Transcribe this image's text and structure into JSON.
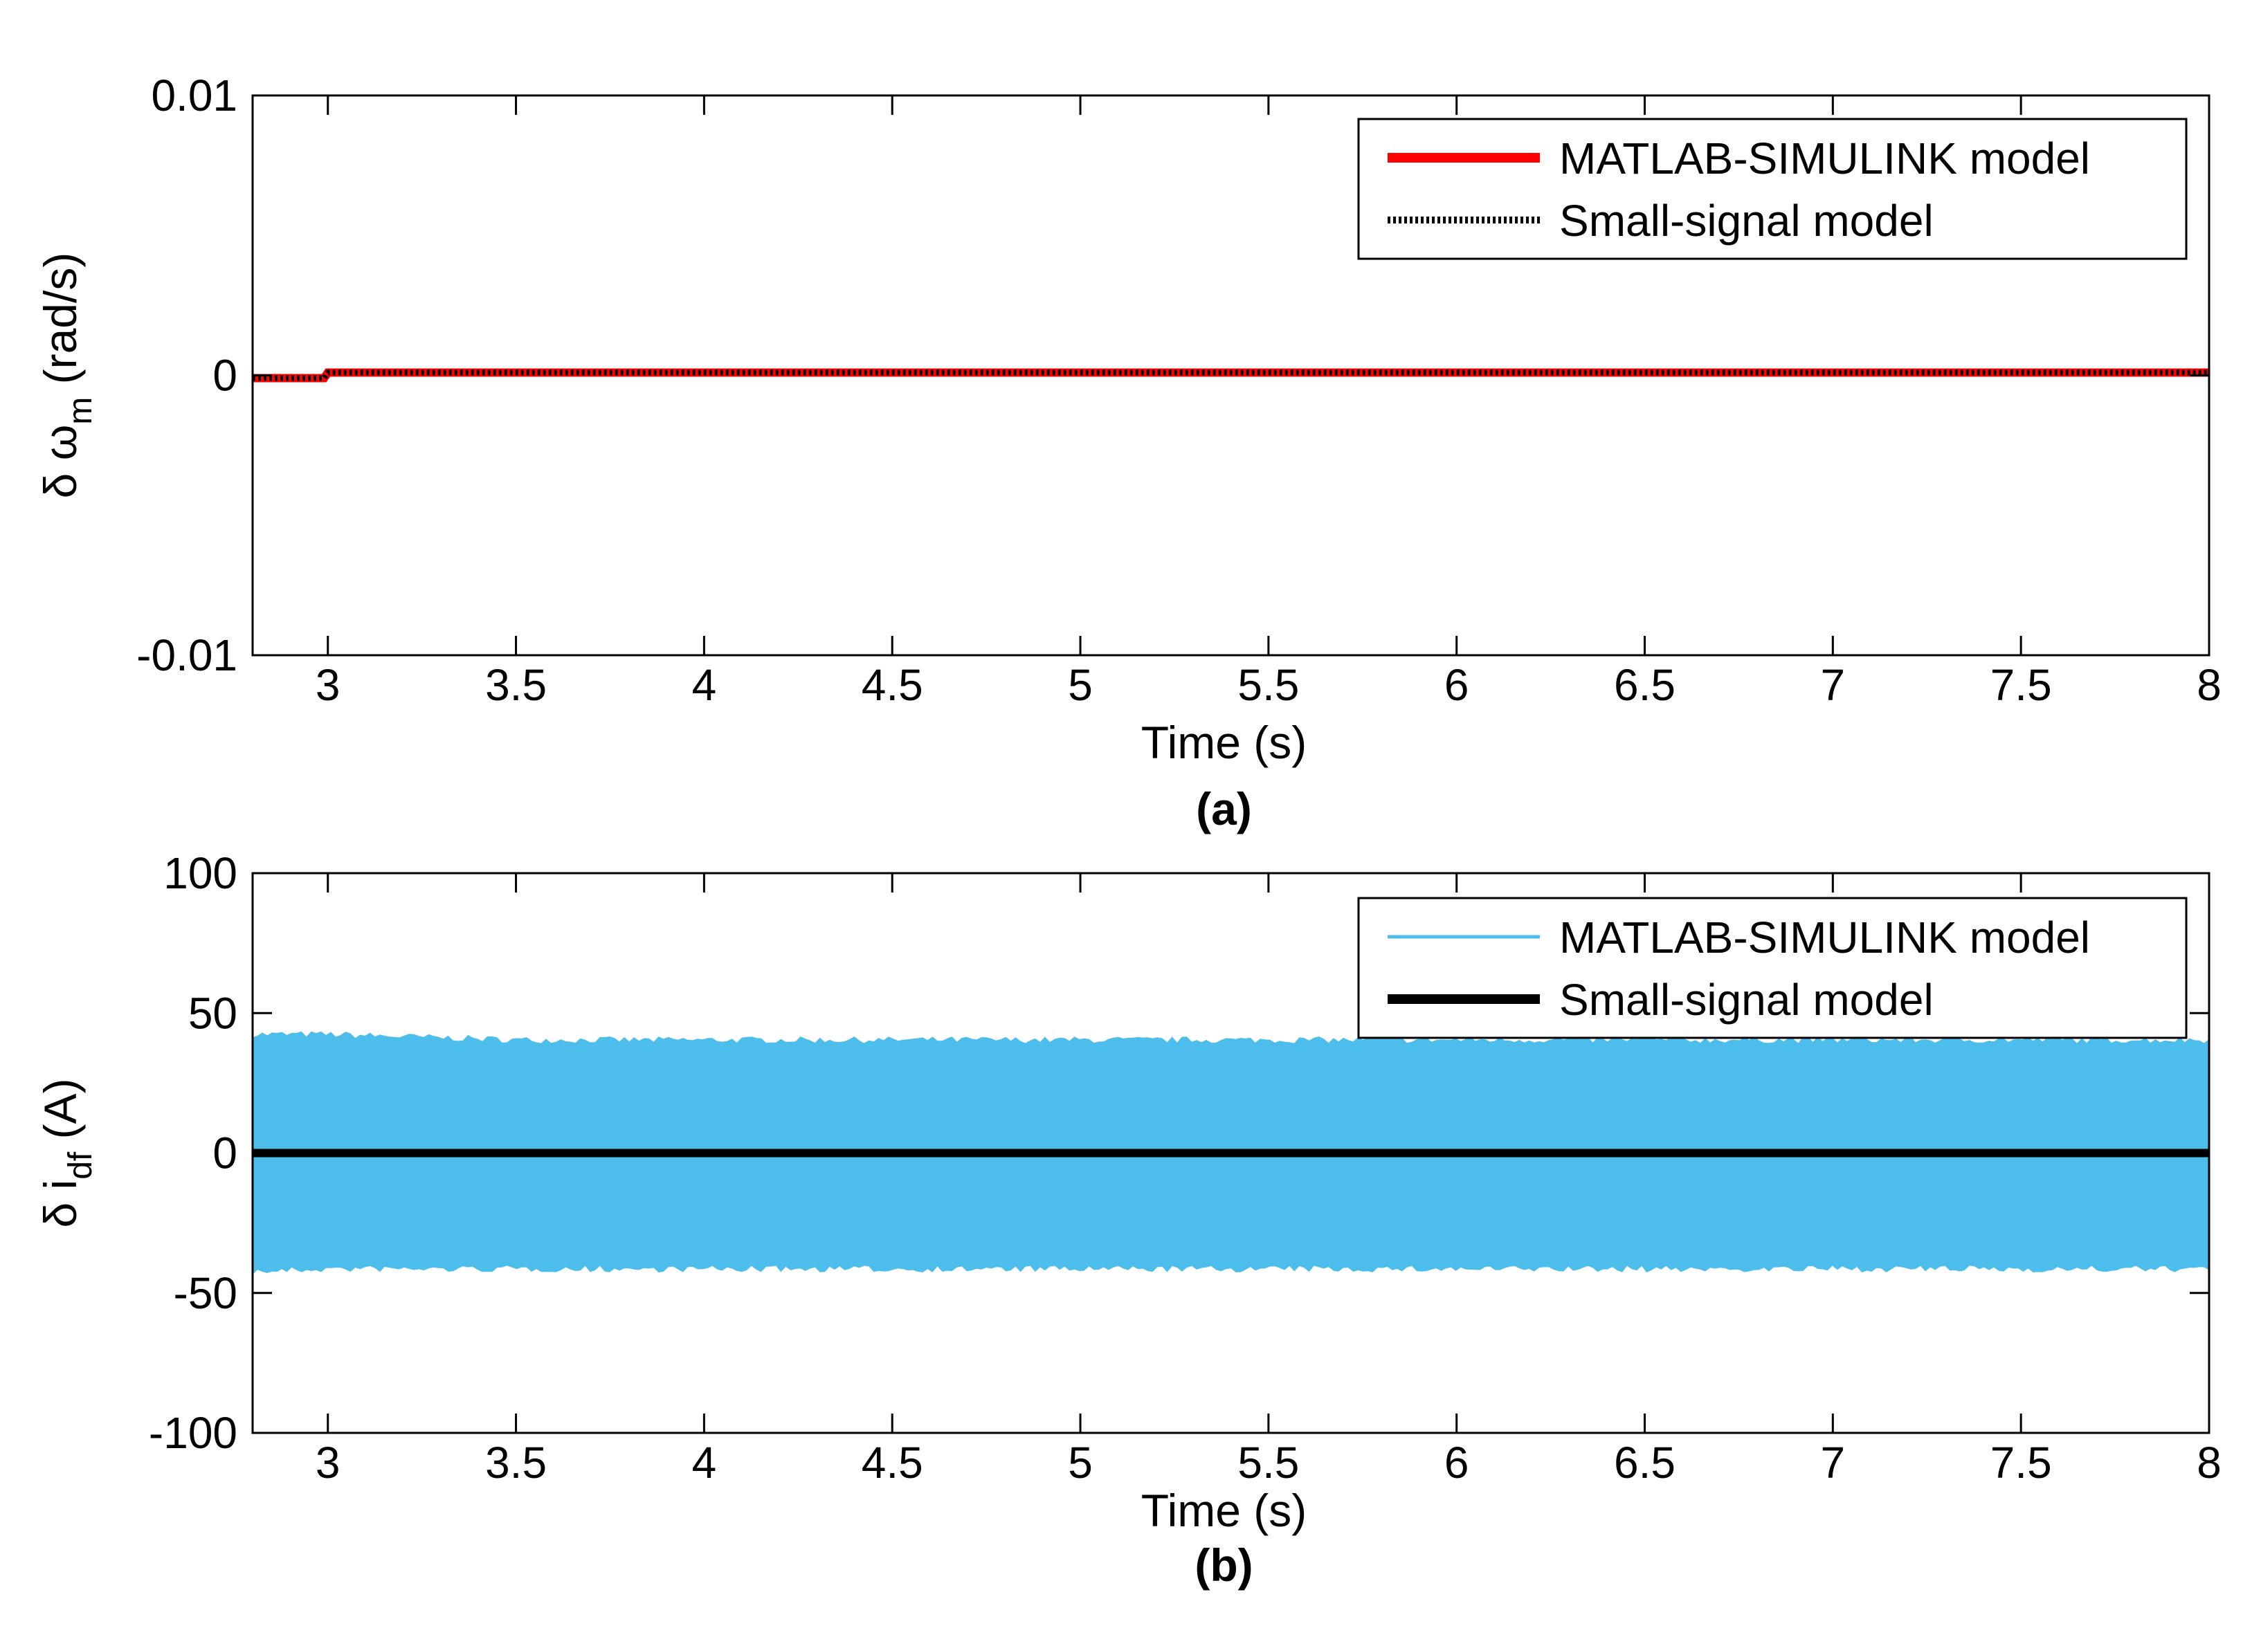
{
  "chart_data": [
    {
      "type": "line",
      "panel_label": "(a)",
      "xlabel": "Time (s)",
      "ylabel": {
        "prefix": "δ ω",
        "subscript": "m",
        "suffix": " (rad/s)"
      },
      "xlim": [
        2.8,
        8
      ],
      "ylim": [
        -0.01,
        0.01
      ],
      "xticks": [
        3,
        3.5,
        4,
        4.5,
        5,
        5.5,
        6,
        6.5,
        7,
        7.5,
        8
      ],
      "xtick_labels": [
        "3",
        "3.5",
        "4",
        "4.5",
        "5",
        "5.5",
        "6",
        "6.5",
        "7",
        "7.5",
        "8"
      ],
      "yticks": [
        0.01,
        0,
        -0.01
      ],
      "ytick_labels": [
        "0.01",
        "0",
        "-0.01"
      ],
      "legend_position": "top-right",
      "series": [
        {
          "name": "MATLAB-SIMULINK model",
          "color": "#ff0000",
          "style": "solid-thick",
          "x": [
            2.8,
            2.99,
            3.0,
            8.0
          ],
          "y": [
            -0.0001,
            -0.0001,
            0.0001,
            0.0001
          ]
        },
        {
          "name": "Small-signal model",
          "color": "#000000",
          "style": "dotted",
          "x": [
            2.8,
            2.99,
            3.0,
            8.0
          ],
          "y": [
            -0.0001,
            -0.0001,
            0.0001,
            0.0001
          ]
        }
      ]
    },
    {
      "type": "line",
      "panel_label": "(b)",
      "xlabel": "Time (s)",
      "ylabel": {
        "prefix": "δ i",
        "subscript": "df",
        "suffix": " (A)"
      },
      "xlim": [
        2.8,
        8
      ],
      "ylim": [
        -100,
        100
      ],
      "xticks": [
        3,
        3.5,
        4,
        4.5,
        5,
        5.5,
        6,
        6.5,
        7,
        7.5,
        8
      ],
      "xtick_labels": [
        "3",
        "3.5",
        "4",
        "4.5",
        "5",
        "5.5",
        "6",
        "6.5",
        "7",
        "7.5",
        "8"
      ],
      "yticks": [
        100,
        50,
        0,
        -50,
        -100
      ],
      "ytick_labels": [
        "100",
        "50",
        "0",
        "-50",
        "-100"
      ],
      "legend_position": "top-right",
      "series": [
        {
          "name": "MATLAB-SIMULINK model",
          "color": "#4dbeeb",
          "style": "band",
          "x": [
            2.8,
            3.0,
            3.5,
            4.0,
            4.5,
            5.0,
            5.5,
            6.0,
            6.5,
            7.0,
            7.5,
            8.0
          ],
          "upper": [
            42,
            42,
            40,
            40,
            40,
            40,
            40,
            40,
            40,
            40,
            40,
            40
          ],
          "lower": [
            -42,
            -41,
            -41,
            -41,
            -41,
            -41,
            -41,
            -41,
            -41,
            -41,
            -41,
            -41
          ]
        },
        {
          "name": "Small-signal model",
          "color": "#000000",
          "style": "solid-thick",
          "x": [
            2.8,
            3.0,
            8.0
          ],
          "y": [
            0,
            0,
            0
          ]
        }
      ]
    }
  ]
}
